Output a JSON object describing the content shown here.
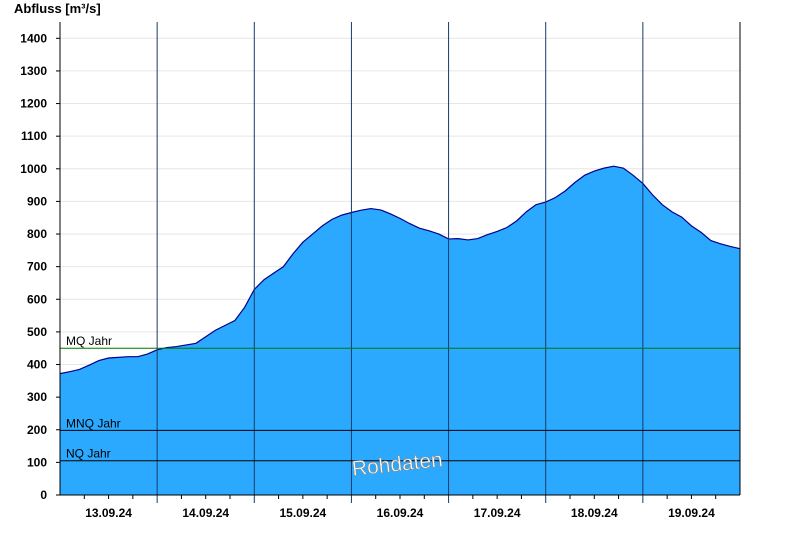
{
  "chart_data": {
    "type": "area",
    "ylabel": "Abfluss [m³/s]",
    "ylim": [
      0,
      1450
    ],
    "yticks": [
      0,
      100,
      200,
      300,
      400,
      500,
      600,
      700,
      800,
      900,
      1000,
      1100,
      1200,
      1300,
      1400
    ],
    "xlim": [
      0,
      7
    ],
    "day_labels": [
      "13.09.24",
      "14.09.24",
      "15.09.24",
      "16.09.24",
      "17.09.24",
      "18.09.24",
      "19.09.24"
    ],
    "grid": true,
    "fill_color": "#2aa9ff",
    "line_color": "#00008b",
    "series": [
      {
        "x": [
          0,
          0.1,
          0.2,
          0.3,
          0.4,
          0.5,
          0.6,
          0.7,
          0.8,
          0.9,
          1.0,
          1.1,
          1.2,
          1.3,
          1.4,
          1.5,
          1.6,
          1.7,
          1.8,
          1.9,
          2.0,
          2.1,
          2.2,
          2.3,
          2.4,
          2.5,
          2.6,
          2.7,
          2.8,
          2.9,
          3.0,
          3.1,
          3.2,
          3.3,
          3.4,
          3.5,
          3.6,
          3.7,
          3.8,
          3.9,
          4.0,
          4.1,
          4.2,
          4.3,
          4.4,
          4.5,
          4.6,
          4.7,
          4.8,
          4.9,
          5.0,
          5.1,
          5.2,
          5.3,
          5.4,
          5.5,
          5.6,
          5.7,
          5.8,
          5.9,
          6.0,
          6.1,
          6.2,
          6.3,
          6.4,
          6.5,
          6.6,
          6.7,
          6.8,
          6.9,
          7.0
        ],
        "values": [
          372,
          378,
          385,
          398,
          412,
          420,
          422,
          424,
          424,
          432,
          445,
          452,
          455,
          460,
          465,
          485,
          505,
          520,
          535,
          575,
          630,
          660,
          680,
          700,
          740,
          775,
          800,
          825,
          845,
          858,
          866,
          873,
          878,
          874,
          862,
          848,
          832,
          818,
          810,
          800,
          785,
          786,
          782,
          786,
          798,
          808,
          820,
          840,
          868,
          890,
          898,
          912,
          932,
          958,
          980,
          993,
          1002,
          1008,
          1002,
          980,
          955,
          920,
          890,
          868,
          852,
          825,
          805,
          780,
          770,
          762,
          755
        ]
      }
    ],
    "reference_lines": [
      {
        "label": "MQ Jahr",
        "value": 450,
        "color": "#007700"
      },
      {
        "label": "MNQ Jahr",
        "value": 198,
        "color": "#000000"
      },
      {
        "label": "NQ Jahr",
        "value": 105,
        "color": "#000000"
      }
    ],
    "watermark": "Rohdaten"
  }
}
